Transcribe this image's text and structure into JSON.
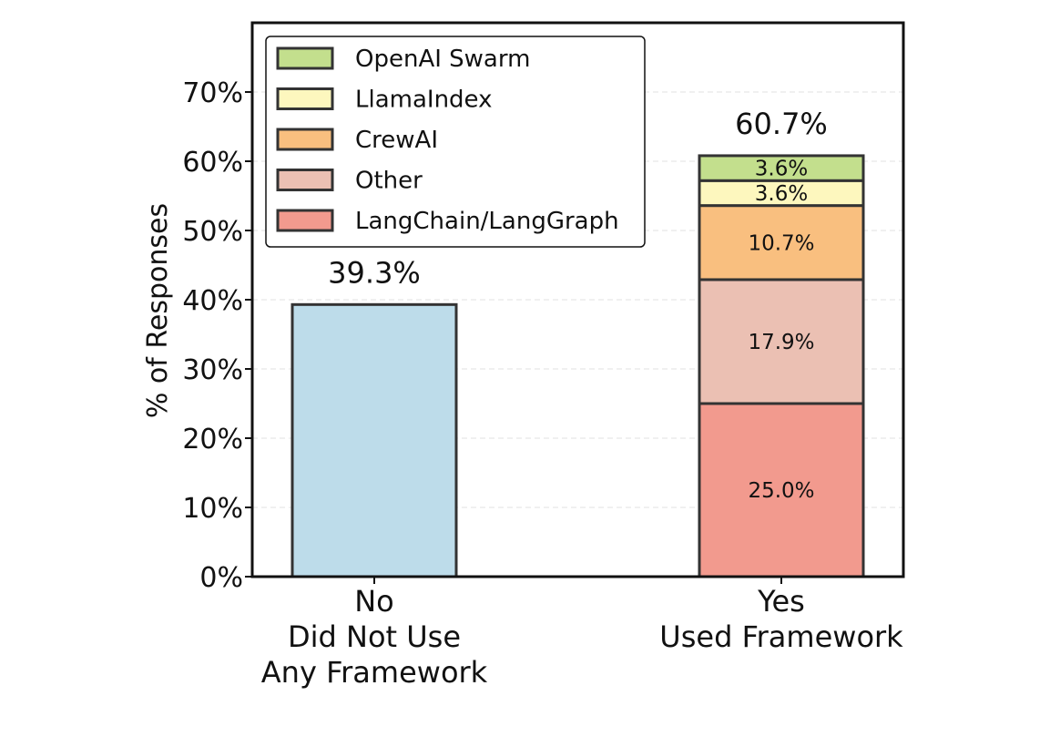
{
  "chart_data": {
    "type": "bar",
    "stacked": true,
    "categories": [
      "No\nDid Not Use\nAny Framework",
      "Yes\nUsed Framework"
    ],
    "ylabel": "% of Responses",
    "ylim": [
      0,
      80
    ],
    "yticks": [
      0,
      10,
      20,
      30,
      40,
      50,
      60,
      70
    ],
    "ytick_labels": [
      "0%",
      "10%",
      "20%",
      "30%",
      "40%",
      "50%",
      "60%",
      "70%"
    ],
    "grid": true,
    "legend_position": "top-left",
    "totals": [
      "39.3%",
      "60.7%"
    ],
    "bars": [
      {
        "category_index": 0,
        "segments": [
          {
            "series": null,
            "value": 39.3,
            "color": "#bddcea",
            "label": ""
          }
        ]
      },
      {
        "category_index": 1,
        "segments": [
          {
            "series": "LangChain/LangGraph",
            "value": 25.0,
            "color": "#f29a8e",
            "label": "25.0%"
          },
          {
            "series": "Other",
            "value": 17.9,
            "color": "#ebc0b3",
            "label": "17.9%"
          },
          {
            "series": "CrewAI",
            "value": 10.7,
            "color": "#f9bf7f",
            "label": "10.7%"
          },
          {
            "series": "LlamaIndex",
            "value": 3.6,
            "color": "#fdf7be",
            "label": "3.6%"
          },
          {
            "series": "OpenAI Swarm",
            "value": 3.6,
            "color": "#c3df8d",
            "label": "3.6%"
          }
        ]
      }
    ],
    "legend": [
      {
        "name": "OpenAI Swarm",
        "color": "#c3df8d"
      },
      {
        "name": "LlamaIndex",
        "color": "#fdf7be"
      },
      {
        "name": "CrewAI",
        "color": "#f9bf7f"
      },
      {
        "name": "Other",
        "color": "#ebc0b3"
      },
      {
        "name": "LangChain/LangGraph",
        "color": "#f29a8e"
      }
    ]
  }
}
